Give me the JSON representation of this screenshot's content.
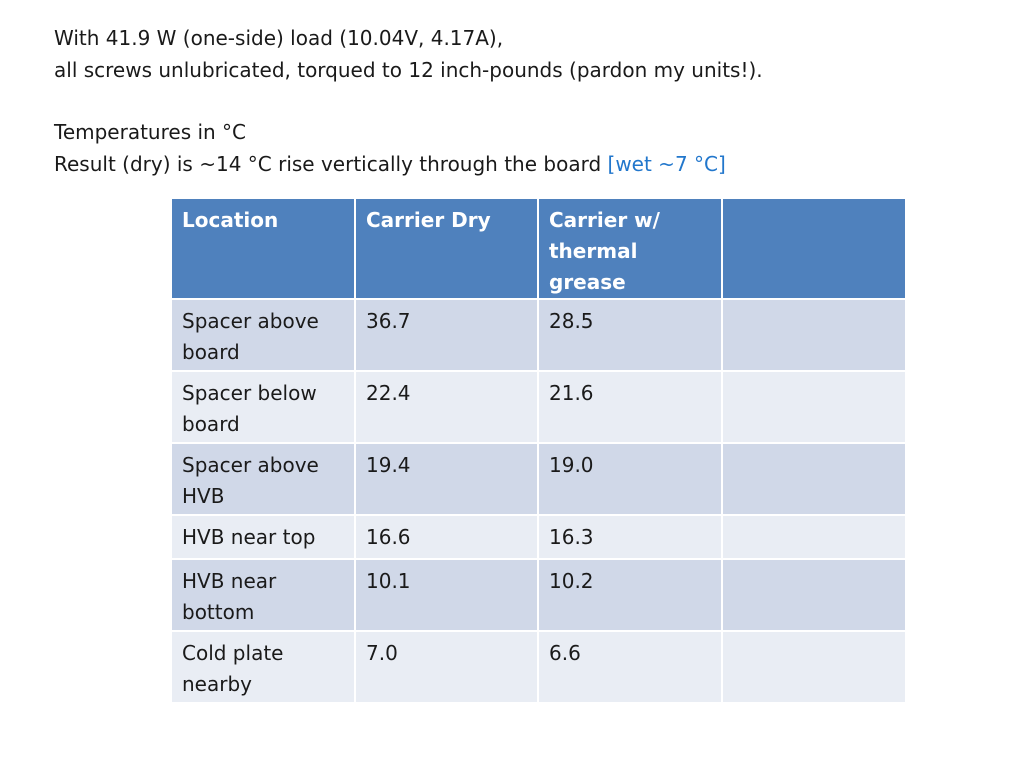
{
  "intro": {
    "line1": "With 41.9 W (one-side) load (10.04V, 4.17A),",
    "line2": "all screws unlubricated, torqued to 12 inch-pounds (pardon my units!).",
    "line3": "Temperatures in °C",
    "line4_main": "Result (dry) is ~14 °C rise vertically through the board ",
    "line4_highlight": "[wet ~7 °C]"
  },
  "colors": {
    "header_bg": "#4f81bd",
    "row_odd_bg": "#d0d8e8",
    "row_even_bg": "#e9edf4",
    "highlight_text": "#2277cc"
  },
  "table": {
    "headers": [
      "Location",
      "Carrier Dry",
      "Carrier w/ thermal grease",
      ""
    ],
    "rows": [
      [
        "Spacer above board",
        "36.7",
        "28.5",
        ""
      ],
      [
        "Spacer below board",
        "22.4",
        "21.6",
        ""
      ],
      [
        "Spacer above HVB",
        "19.4",
        "19.0",
        ""
      ],
      [
        "HVB near top",
        "16.6",
        "16.3",
        ""
      ],
      [
        "HVB near bottom",
        "10.1",
        "10.2",
        ""
      ],
      [
        "Cold plate nearby",
        "7.0",
        "6.6",
        ""
      ]
    ]
  }
}
